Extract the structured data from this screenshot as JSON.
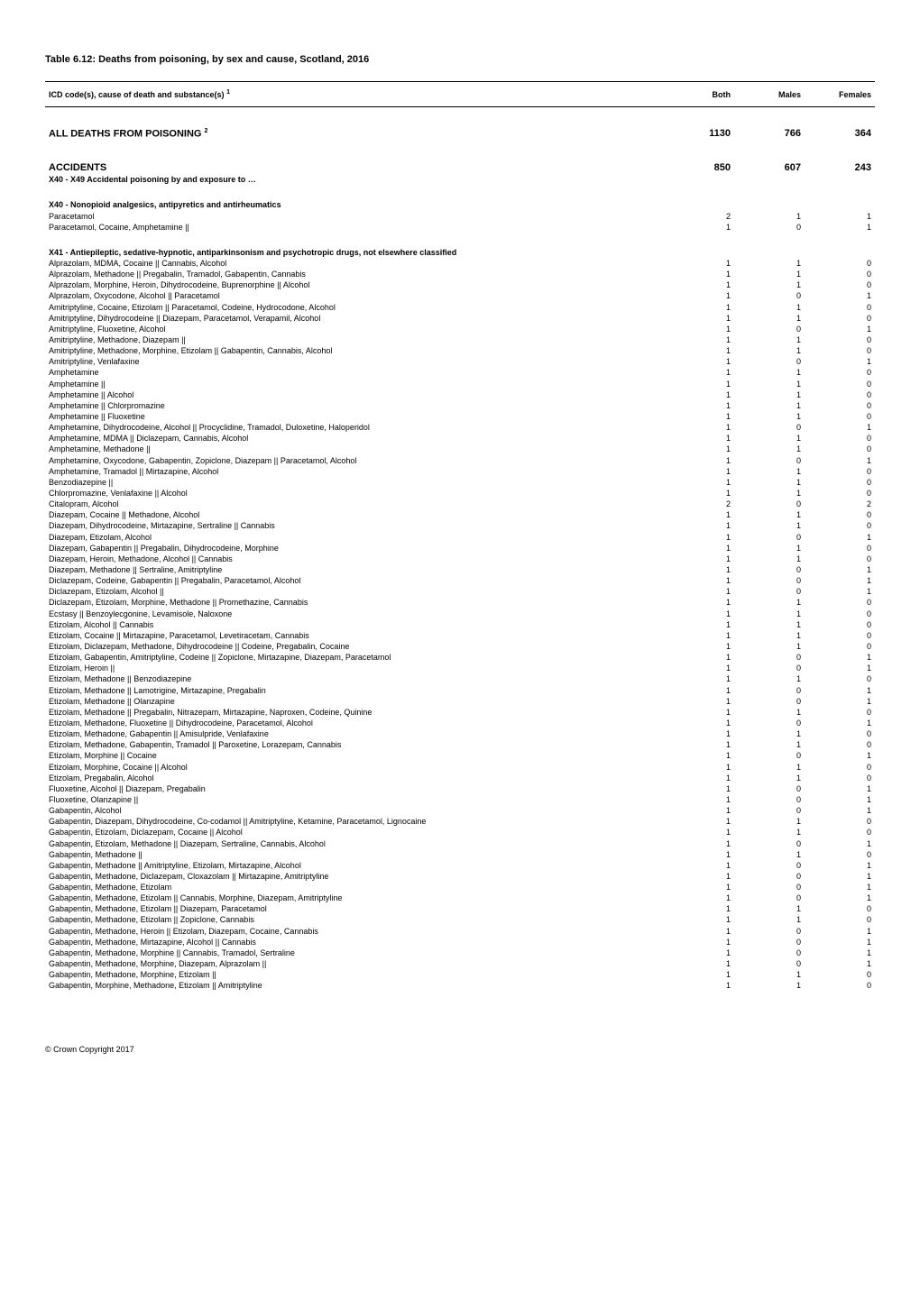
{
  "title": "Table 6.12: Deaths from poisoning, by sex and cause, Scotland, 2016",
  "header": {
    "col0": "ICD code(s), cause of death and substance(s)",
    "col0_sup": "1",
    "col1": "Both",
    "col2": "Males",
    "col3": "Females"
  },
  "sections": [
    {
      "type": "bigspacer"
    },
    {
      "type": "section-bold",
      "label": "ALL DEATHS FROM POISONING",
      "sup": "2",
      "both": "1130",
      "males": "766",
      "females": "364"
    },
    {
      "type": "bigspacer"
    },
    {
      "type": "section-bold",
      "label": "ACCIDENTS",
      "both": "850",
      "males": "607",
      "females": "243"
    },
    {
      "type": "subheader",
      "label": "X40 - X49 Accidental poisoning by and exposure to …"
    },
    {
      "type": "spacer"
    },
    {
      "type": "subheader",
      "label": "X40 - Nonopioid analgesics, antipyretics and antirheumatics"
    },
    {
      "type": "row",
      "label": "Paracetamol",
      "both": "2",
      "males": "1",
      "females": "1"
    },
    {
      "type": "row",
      "label": "Paracetamol, Cocaine, Amphetamine ||",
      "both": "1",
      "males": "0",
      "females": "1"
    },
    {
      "type": "spacer"
    },
    {
      "type": "subheader",
      "label": "X41 - Antiepileptic, sedative-hypnotic, antiparkinsonism and psychotropic drugs, not elsewhere classified"
    },
    {
      "type": "row",
      "label": "Alprazolam, MDMA, Cocaine || Cannabis, Alcohol",
      "both": "1",
      "males": "1",
      "females": "0"
    },
    {
      "type": "row",
      "label": "Alprazolam, Methadone || Pregabalin, Tramadol, Gabapentin, Cannabis",
      "both": "1",
      "males": "1",
      "females": "0"
    },
    {
      "type": "row",
      "label": "Alprazolam, Morphine, Heroin, Dihydrocodeine, Buprenorphine || Alcohol",
      "both": "1",
      "males": "1",
      "females": "0"
    },
    {
      "type": "row",
      "label": "Alprazolam, Oxycodone, Alcohol || Paracetamol",
      "both": "1",
      "males": "0",
      "females": "1"
    },
    {
      "type": "row",
      "label": "Amitriptyline, Cocaine, Etizolam || Paracetamol, Codeine, Hydrocodone, Alcohol",
      "both": "1",
      "males": "1",
      "females": "0"
    },
    {
      "type": "row",
      "label": "Amitriptyline, Dihydrocodeine || Diazepam, Paracetamol, Verapamil, Alcohol",
      "both": "1",
      "males": "1",
      "females": "0"
    },
    {
      "type": "row",
      "label": "Amitriptyline, Fluoxetine, Alcohol",
      "both": "1",
      "males": "0",
      "females": "1"
    },
    {
      "type": "row",
      "label": "Amitriptyline, Methadone, Diazepam ||",
      "both": "1",
      "males": "1",
      "females": "0"
    },
    {
      "type": "row",
      "label": "Amitriptyline, Methadone, Morphine, Etizolam || Gabapentin, Cannabis, Alcohol",
      "both": "1",
      "males": "1",
      "females": "0"
    },
    {
      "type": "row",
      "label": "Amitriptyline, Venlafaxine",
      "both": "1",
      "males": "0",
      "females": "1"
    },
    {
      "type": "row",
      "label": "Amphetamine",
      "both": "1",
      "males": "1",
      "females": "0"
    },
    {
      "type": "row",
      "label": "Amphetamine ||",
      "both": "1",
      "males": "1",
      "females": "0"
    },
    {
      "type": "row",
      "label": "Amphetamine || Alcohol",
      "both": "1",
      "males": "1",
      "females": "0"
    },
    {
      "type": "row",
      "label": "Amphetamine || Chlorpromazine",
      "both": "1",
      "males": "1",
      "females": "0"
    },
    {
      "type": "row",
      "label": "Amphetamine || Fluoxetine",
      "both": "1",
      "males": "1",
      "females": "0"
    },
    {
      "type": "row",
      "label": "Amphetamine, Dihydrocodeine, Alcohol || Procyclidine, Tramadol, Duloxetine, Haloperidol",
      "both": "1",
      "males": "0",
      "females": "1"
    },
    {
      "type": "row",
      "label": "Amphetamine, MDMA || Diclazepam, Cannabis, Alcohol",
      "both": "1",
      "males": "1",
      "females": "0"
    },
    {
      "type": "row",
      "label": "Amphetamine, Methadone ||",
      "both": "1",
      "males": "1",
      "females": "0"
    },
    {
      "type": "row",
      "label": "Amphetamine, Oxycodone, Gabapentin, Zopiclone, Diazepam || Paracetamol, Alcohol",
      "both": "1",
      "males": "0",
      "females": "1"
    },
    {
      "type": "row",
      "label": "Amphetamine, Tramadol || Mirtazapine, Alcohol",
      "both": "1",
      "males": "1",
      "females": "0"
    },
    {
      "type": "row",
      "label": "Benzodiazepine ||",
      "both": "1",
      "males": "1",
      "females": "0"
    },
    {
      "type": "row",
      "label": "Chlorpromazine, Venlafaxine || Alcohol",
      "both": "1",
      "males": "1",
      "females": "0"
    },
    {
      "type": "row",
      "label": "Citalopram, Alcohol",
      "both": "2",
      "males": "0",
      "females": "2"
    },
    {
      "type": "row",
      "label": "Diazepam, Cocaine || Methadone, Alcohol",
      "both": "1",
      "males": "1",
      "females": "0"
    },
    {
      "type": "row",
      "label": "Diazepam, Dihydrocodeine, Mirtazapine, Sertraline || Cannabis",
      "both": "1",
      "males": "1",
      "females": "0"
    },
    {
      "type": "row",
      "label": "Diazepam, Etizolam, Alcohol",
      "both": "1",
      "males": "0",
      "females": "1"
    },
    {
      "type": "row",
      "label": "Diazepam, Gabapentin || Pregabalin, Dihydrocodeine, Morphine",
      "both": "1",
      "males": "1",
      "females": "0"
    },
    {
      "type": "row",
      "label": "Diazepam, Heroin, Methadone, Alcohol || Cannabis",
      "both": "1",
      "males": "1",
      "females": "0"
    },
    {
      "type": "row",
      "label": "Diazepam, Methadone || Sertraline, Amitriptyline",
      "both": "1",
      "males": "0",
      "females": "1"
    },
    {
      "type": "row",
      "label": "Diclazepam, Codeine, Gabapentin || Pregabalin, Paracetamol, Alcohol",
      "both": "1",
      "males": "0",
      "females": "1"
    },
    {
      "type": "row",
      "label": "Diclazepam, Etizolam, Alcohol ||",
      "both": "1",
      "males": "0",
      "females": "1"
    },
    {
      "type": "row",
      "label": "Diclazepam, Etizolam, Morphine, Methadone || Promethazine, Cannabis",
      "both": "1",
      "males": "1",
      "females": "0"
    },
    {
      "type": "row",
      "label": "Ecstasy || Benzoylecgonine, Levamisole, Naloxone",
      "both": "1",
      "males": "1",
      "females": "0"
    },
    {
      "type": "row",
      "label": "Etizolam, Alcohol || Cannabis",
      "both": "1",
      "males": "1",
      "females": "0"
    },
    {
      "type": "row",
      "label": "Etizolam, Cocaine || Mirtazapine, Paracetamol, Levetiracetam, Cannabis",
      "both": "1",
      "males": "1",
      "females": "0"
    },
    {
      "type": "row",
      "label": "Etizolam, Diclazepam, Methadone, Dihydrocodeine || Codeine, Pregabalin, Cocaine",
      "both": "1",
      "males": "1",
      "females": "0"
    },
    {
      "type": "row",
      "label": "Etizolam, Gabapentin, Amitriptyline, Codeine || Zopiclone, Mirtazapine, Diazepam, Paracetamol",
      "both": "1",
      "males": "0",
      "females": "1"
    },
    {
      "type": "row",
      "label": "Etizolam, Heroin ||",
      "both": "1",
      "males": "0",
      "females": "1"
    },
    {
      "type": "row",
      "label": "Etizolam, Methadone || Benzodiazepine",
      "both": "1",
      "males": "1",
      "females": "0"
    },
    {
      "type": "row",
      "label": "Etizolam, Methadone || Lamotrigine, Mirtazapine, Pregabalin",
      "both": "1",
      "males": "0",
      "females": "1"
    },
    {
      "type": "row",
      "label": "Etizolam, Methadone || Olanzapine",
      "both": "1",
      "males": "0",
      "females": "1"
    },
    {
      "type": "row",
      "label": "Etizolam, Methadone || Pregabalin, Nitrazepam, Mirtazapine, Naproxen, Codeine, Quinine",
      "both": "1",
      "males": "1",
      "females": "0"
    },
    {
      "type": "row",
      "label": "Etizolam, Methadone, Fluoxetine || Dihydrocodeine, Paracetamol, Alcohol",
      "both": "1",
      "males": "0",
      "females": "1"
    },
    {
      "type": "row",
      "label": "Etizolam, Methadone, Gabapentin || Amisulpride, Venlafaxine",
      "both": "1",
      "males": "1",
      "females": "0"
    },
    {
      "type": "row",
      "label": "Etizolam, Methadone, Gabapentin, Tramadol || Paroxetine, Lorazepam, Cannabis",
      "both": "1",
      "males": "1",
      "females": "0"
    },
    {
      "type": "row",
      "label": "Etizolam, Morphine || Cocaine",
      "both": "1",
      "males": "0",
      "females": "1"
    },
    {
      "type": "row",
      "label": "Etizolam, Morphine, Cocaine || Alcohol",
      "both": "1",
      "males": "1",
      "females": "0"
    },
    {
      "type": "row",
      "label": "Etizolam, Pregabalin, Alcohol",
      "both": "1",
      "males": "1",
      "females": "0"
    },
    {
      "type": "row",
      "label": "Fluoxetine, Alcohol || Diazepam, Pregabalin",
      "both": "1",
      "males": "0",
      "females": "1"
    },
    {
      "type": "row",
      "label": "Fluoxetine, Olanzapine ||",
      "both": "1",
      "males": "0",
      "females": "1"
    },
    {
      "type": "row",
      "label": "Gabapentin, Alcohol",
      "both": "1",
      "males": "0",
      "females": "1"
    },
    {
      "type": "row",
      "label": "Gabapentin, Diazepam, Dihydrocodeine, Co-codamol || Amitriptyline, Ketamine, Paracetamol, Lignocaine",
      "both": "1",
      "males": "1",
      "females": "0"
    },
    {
      "type": "row",
      "label": "Gabapentin, Etizolam, Diclazepam, Cocaine || Alcohol",
      "both": "1",
      "males": "1",
      "females": "0"
    },
    {
      "type": "row",
      "label": "Gabapentin, Etizolam, Methadone || Diazepam, Sertraline, Cannabis, Alcohol",
      "both": "1",
      "males": "0",
      "females": "1"
    },
    {
      "type": "row",
      "label": "Gabapentin, Methadone ||",
      "both": "1",
      "males": "1",
      "females": "0"
    },
    {
      "type": "row",
      "label": "Gabapentin, Methadone || Amitriptyline, Etizolam, Mirtazapine, Alcohol",
      "both": "1",
      "males": "0",
      "females": "1"
    },
    {
      "type": "row",
      "label": "Gabapentin, Methadone, Diclazepam, Cloxazolam || Mirtazapine, Amitriptyline",
      "both": "1",
      "males": "0",
      "females": "1"
    },
    {
      "type": "row",
      "label": "Gabapentin, Methadone, Etizolam",
      "both": "1",
      "males": "0",
      "females": "1"
    },
    {
      "type": "row",
      "label": "Gabapentin, Methadone, Etizolam || Cannabis, Morphine, Diazepam, Amitriptyline",
      "both": "1",
      "males": "0",
      "females": "1"
    },
    {
      "type": "row",
      "label": "Gabapentin, Methadone, Etizolam || Diazepam, Paracetamol",
      "both": "1",
      "males": "1",
      "females": "0"
    },
    {
      "type": "row",
      "label": "Gabapentin, Methadone, Etizolam || Zopiclone, Cannabis",
      "both": "1",
      "males": "1",
      "females": "0"
    },
    {
      "type": "row",
      "label": "Gabapentin, Methadone, Heroin || Etizolam, Diazepam, Cocaine, Cannabis",
      "both": "1",
      "males": "0",
      "females": "1"
    },
    {
      "type": "row",
      "label": "Gabapentin, Methadone, Mirtazapine, Alcohol || Cannabis",
      "both": "1",
      "males": "0",
      "females": "1"
    },
    {
      "type": "row",
      "label": "Gabapentin, Methadone, Morphine || Cannabis, Tramadol, Sertraline",
      "both": "1",
      "males": "0",
      "females": "1"
    },
    {
      "type": "row",
      "label": "Gabapentin, Methadone, Morphine, Diazepam, Alprazolam ||",
      "both": "1",
      "males": "0",
      "females": "1"
    },
    {
      "type": "row",
      "label": "Gabapentin, Methadone, Morphine, Etizolam ||",
      "both": "1",
      "males": "1",
      "females": "0"
    },
    {
      "type": "row",
      "label": "Gabapentin, Morphine, Methadone, Etizolam || Amitriptyline",
      "both": "1",
      "males": "1",
      "females": "0"
    }
  ],
  "footer": "© Crown Copyright 2017"
}
